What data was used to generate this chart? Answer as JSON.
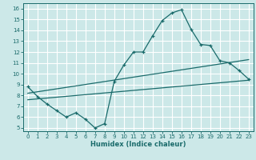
{
  "xlabel": "Humidex (Indice chaleur)",
  "bg_color": "#cce8e8",
  "grid_color": "#ffffff",
  "line_color": "#1a6b6b",
  "xlim": [
    -0.5,
    23.5
  ],
  "ylim": [
    4.7,
    16.5
  ],
  "xticks": [
    0,
    1,
    2,
    3,
    4,
    5,
    6,
    7,
    8,
    9,
    10,
    11,
    12,
    13,
    14,
    15,
    16,
    17,
    18,
    19,
    20,
    21,
    22,
    23
  ],
  "yticks": [
    5,
    6,
    7,
    8,
    9,
    10,
    11,
    12,
    13,
    14,
    15,
    16
  ],
  "main_x": [
    0,
    1,
    2,
    3,
    4,
    5,
    6,
    7,
    8,
    9,
    10,
    11,
    12,
    13,
    14,
    15,
    16,
    17,
    18,
    19,
    20,
    21,
    22,
    23
  ],
  "main_y": [
    8.8,
    7.9,
    7.2,
    6.6,
    6.0,
    6.4,
    5.8,
    5.0,
    5.4,
    9.3,
    10.8,
    12.0,
    12.0,
    13.5,
    14.9,
    15.6,
    15.9,
    14.1,
    12.7,
    12.6,
    11.2,
    11.0,
    10.3,
    9.5
  ],
  "line1_x": [
    0,
    23
  ],
  "line1_y": [
    8.2,
    11.3
  ],
  "line2_x": [
    0,
    23
  ],
  "line2_y": [
    7.6,
    9.4
  ]
}
